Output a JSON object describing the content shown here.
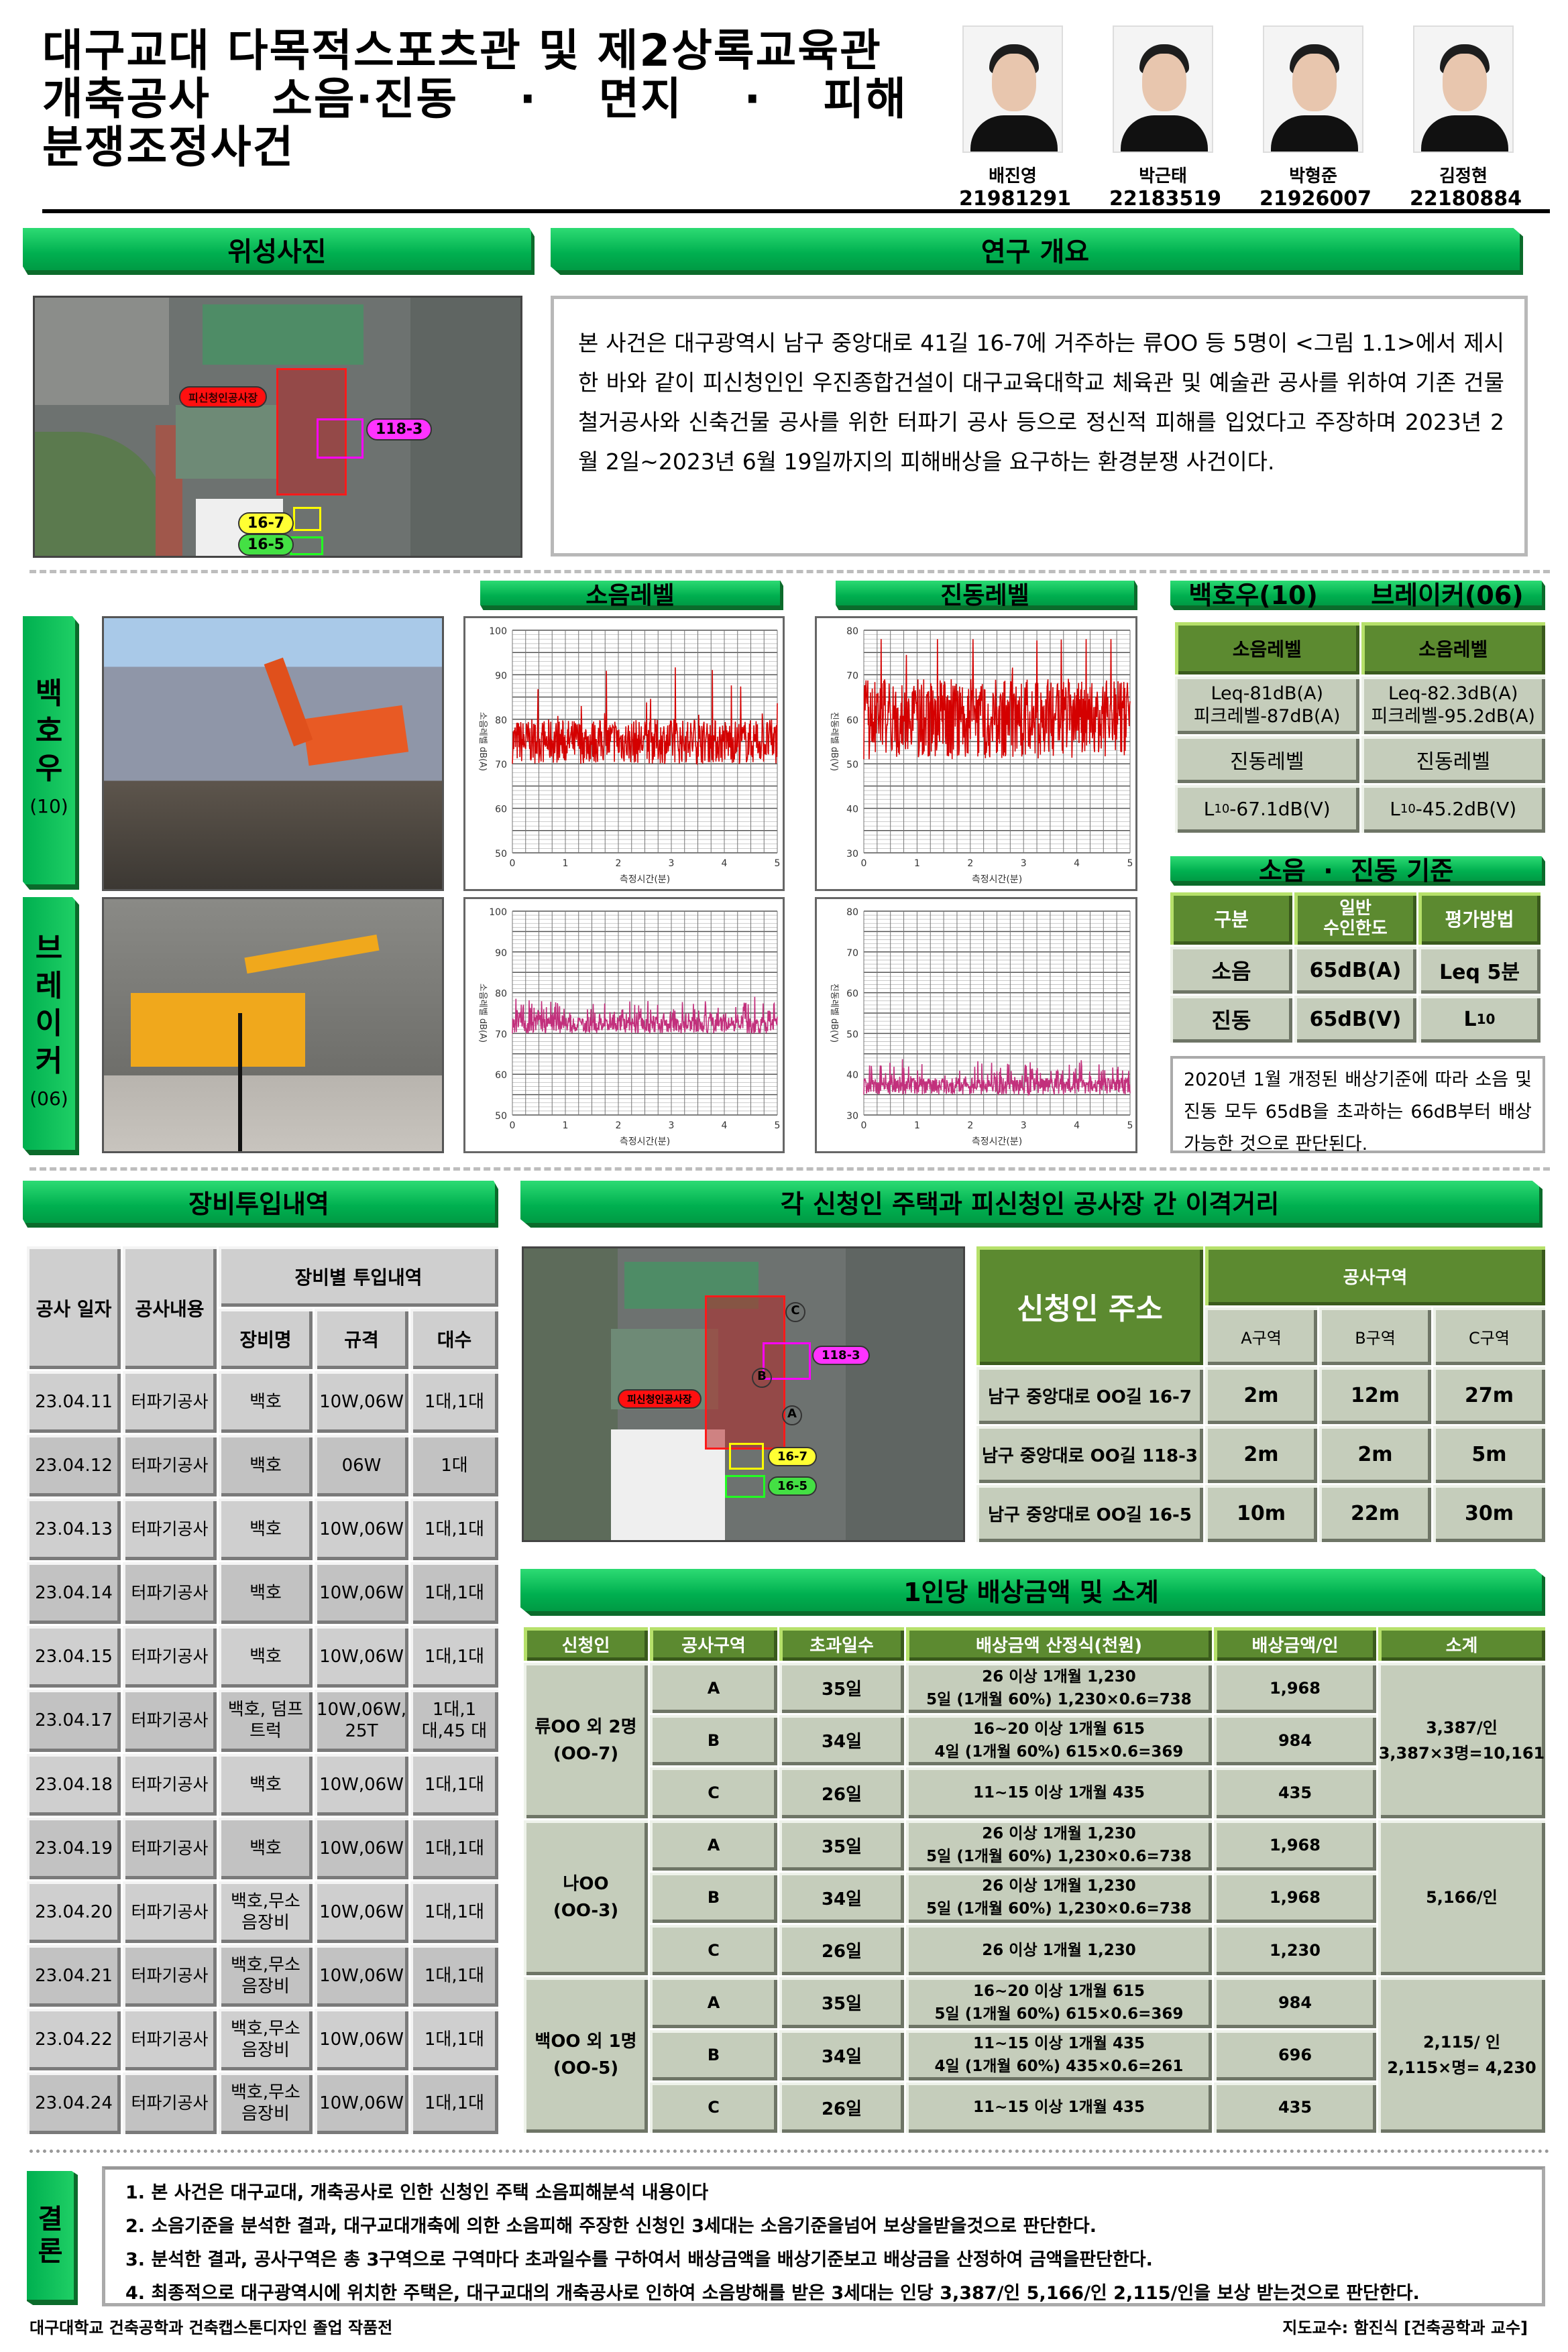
{
  "header": {
    "title_lines": [
      "대구교대 다목적스포츠관 및 제2상록교육관",
      "개축공사 소음·진동 · 면지 · 피해",
      "분쟁조정사건"
    ],
    "title_line2_parts": [
      "개축공사",
      "소음·진동",
      "·",
      "면지",
      "·",
      "피해"
    ],
    "members": [
      {
        "name": "배진영",
        "id": "21981291"
      },
      {
        "name": "박근태",
        "id": "22183519"
      },
      {
        "name": "박형준",
        "id": "21926007"
      },
      {
        "name": "김정현",
        "id": "22180884"
      }
    ]
  },
  "sections": {
    "satellite": "위성사진",
    "overview": "연구 개요",
    "noise_level": "소음레벨",
    "vibration_level": "진동레벨",
    "equipment_header": "백호우(10)      브레이커(06)",
    "standard": "소음  ·  진동 기준",
    "equipment_log": "장비투입내역",
    "distance": "각 신청인 주택과 피신청인 공사장 간 이격거리",
    "compensation": "1인당 배상금액 및 소계",
    "conclusion": "결론"
  },
  "satellite_map": {
    "site_label": "피신청인공사장",
    "labels": [
      "118-3",
      "16-7",
      "16-5"
    ],
    "zones": [
      "A",
      "B",
      "C"
    ]
  },
  "overview_text": "본 사건은 대구광역시 남구 중앙대로 41길 16-7에 거주하는 류OO 등 5명이 <그림 1.1>에서 제시한 바와 같이 피신청인인 우진종합건설이 대구교육대학교 체육관 및 예술관 공사를 위하여 기존 건물 철거공사와 신축건물 공사를 위한 터파기 공사 등으로 정신적 피해를 입었다고 주장하며 2023년 2월 2일~2023년 6월 19일까지의 피해배상을 요구하는 환경분쟁 사건이다.",
  "equipment_labels": [
    {
      "title": "백호우",
      "sub": "(10)"
    },
    {
      "title": "브레이커",
      "sub": "(06)"
    }
  ],
  "charts": {
    "noise": {
      "ylabel": "소음레벨 dB(A)",
      "xlabel": "측정시간(분)",
      "yticks": [
        "50",
        "60",
        "70",
        "80",
        "90",
        "100"
      ],
      "xticks": [
        "0",
        "1",
        "2",
        "3",
        "4",
        "5"
      ],
      "ylim": [
        50,
        100
      ],
      "xlim": [
        0,
        5
      ]
    },
    "vibration": {
      "ylabel": "진동레벨 dB(V)",
      "xlabel": "측정시간(분)",
      "yticks": [
        "30",
        "40",
        "50",
        "60",
        "70",
        "80"
      ],
      "xticks": [
        "0",
        "1",
        "2",
        "3",
        "4",
        "5"
      ],
      "ylim": [
        30,
        80
      ],
      "xlim": [
        0,
        5
      ]
    },
    "colors": {
      "backhoe": "#d40000",
      "breaker": "#c2307c"
    }
  },
  "measurements": {
    "col_headers": [
      "소음레벨",
      "소음레벨"
    ],
    "noise_values": [
      [
        "Leq-81dB(A)",
        "피크레벨-87dB(A)"
      ],
      [
        "Leq-82.3dB(A)",
        "피크레벨-95.2dB(A)"
      ]
    ],
    "vib_headers": [
      "진동레벨",
      "진동레벨"
    ],
    "vib_values": [
      "-67.1dB(V)",
      "-45.2dB(V)"
    ],
    "vib_symbol": "L",
    "vib_sub": "10"
  },
  "standards": {
    "headers": [
      "구분",
      "일반\n수인한도",
      "평가방법"
    ],
    "rows": [
      {
        "type": "소음",
        "limit": "65dB(A)",
        "method": "Leq 5분"
      },
      {
        "type": "진동",
        "limit": "65dB(V)",
        "method": "L",
        "method_sub": "10"
      }
    ],
    "note": "2020년 1월 개정된 배상기준에 따라 소음 및 진동 모두 65dB을 초과하는 66dB부터 배상가능한 것으로 판단된다."
  },
  "equipment_log": {
    "headers": {
      "date": "공사 일자",
      "work": "공사내용",
      "group": "장비별 투입내역",
      "name": "장비명",
      "spec": "규격",
      "count": "대수"
    },
    "rows": [
      {
        "date": "23.04.11",
        "work": "터파기공사",
        "name": "백호",
        "spec": "10W,06W",
        "count": "1대,1대"
      },
      {
        "date": "23.04.12",
        "work": "터파기공사",
        "name": "백호",
        "spec": "06W",
        "count": "1대"
      },
      {
        "date": "23.04.13",
        "work": "터파기공사",
        "name": "백호",
        "spec": "10W,06W",
        "count": "1대,1대"
      },
      {
        "date": "23.04.14",
        "work": "터파기공사",
        "name": "백호",
        "spec": "10W,06W",
        "count": "1대,1대"
      },
      {
        "date": "23.04.15",
        "work": "터파기공사",
        "name": "백호",
        "spec": "10W,06W",
        "count": "1대,1대"
      },
      {
        "date": "23.04.17",
        "work": "터파기공사",
        "name": "백호, 덤프트럭",
        "spec": "10W,06W, 25T",
        "count": "1대,1대,45 대"
      },
      {
        "date": "23.04.18",
        "work": "터파기공사",
        "name": "백호",
        "spec": "10W,06W",
        "count": "1대,1대"
      },
      {
        "date": "23.04.19",
        "work": "터파기공사",
        "name": "백호",
        "spec": "10W,06W",
        "count": "1대,1대"
      },
      {
        "date": "23.04.20",
        "work": "터파기공사",
        "name": "백호,무소 음장비",
        "spec": "10W,06W",
        "count": "1대,1대"
      },
      {
        "date": "23.04.21",
        "work": "터파기공사",
        "name": "백호,무소 음장비",
        "spec": "10W,06W",
        "count": "1대,1대"
      },
      {
        "date": "23.04.22",
        "work": "터파기공사",
        "name": "백호,무소 음장비",
        "spec": "10W,06W",
        "count": "1대,1대"
      },
      {
        "date": "23.04.24",
        "work": "터파기공사",
        "name": "백호,무소 음장비",
        "spec": "10W,06W",
        "count": "1대,1대"
      }
    ]
  },
  "distance_table": {
    "address_header": "신청인 주소",
    "zone_header": "공사구역",
    "zones": [
      "A구역",
      "B구역",
      "C구역"
    ],
    "rows": [
      {
        "address": "남구 중앙대로 OO길 16-7",
        "values": [
          "2m",
          "12m",
          "27m"
        ]
      },
      {
        "address": "남구 중앙대로 OO길 118-3",
        "values": [
          "2m",
          "2m",
          "5m"
        ]
      },
      {
        "address": "남구 중앙대로 OO길 16-5",
        "values": [
          "10m",
          "22m",
          "30m"
        ]
      }
    ]
  },
  "compensation": {
    "headers": [
      "신청인",
      "공사구역",
      "초과일수",
      "배상금액 산정식(천원)",
      "배상금액/인",
      "소계"
    ],
    "groups": [
      {
        "applicant": "류OO 외 2명",
        "address": "(OO-7)",
        "subtotal": [
          "3,387/인",
          "3,387×3명=10,161"
        ],
        "rows": [
          {
            "zone": "A",
            "days": "35일",
            "formula": [
              "26 이상 1개월 1,230",
              "5일 (1개월 60%) 1,230×0.6=738"
            ],
            "amount": "1,968"
          },
          {
            "zone": "B",
            "days": "34일",
            "formula": [
              "16~20 이상 1개월 615",
              "4일 (1개월 60%) 615×0.6=369"
            ],
            "amount": "984"
          },
          {
            "zone": "C",
            "days": "26일",
            "formula": [
              "11~15 이상 1개월 435"
            ],
            "amount": "435"
          }
        ]
      },
      {
        "applicant": "나OO",
        "address": "(OO-3)",
        "subtotal": [
          "5,166/인"
        ],
        "rows": [
          {
            "zone": "A",
            "days": "35일",
            "formula": [
              "26 이상 1개월 1,230",
              "5일 (1개월 60%) 1,230×0.6=738"
            ],
            "amount": "1,968"
          },
          {
            "zone": "B",
            "days": "34일",
            "formula": [
              "26 이상 1개월 1,230",
              "5일 (1개월 60%) 1,230×0.6=738"
            ],
            "amount": "1,968"
          },
          {
            "zone": "C",
            "days": "26일",
            "formula": [
              "26 이상 1개월 1,230"
            ],
            "amount": "1,230"
          }
        ]
      },
      {
        "applicant": "백OO 외 1명",
        "address": "(OO-5)",
        "subtotal": [
          "2,115/ 인",
          "2,115×명= 4,230"
        ],
        "rows": [
          {
            "zone": "A",
            "days": "35일",
            "formula": [
              "16~20 이상 1개월 615",
              "5일 (1개월 60%) 615×0.6=369"
            ],
            "amount": "984"
          },
          {
            "zone": "B",
            "days": "34일",
            "formula": [
              "11~15 이상 1개월 435",
              "4일 (1개월 60%) 435×0.6=261"
            ],
            "amount": "696"
          },
          {
            "zone": "C",
            "days": "26일",
            "formula": [
              "11~15 이상 1개월 435"
            ],
            "amount": "435"
          }
        ]
      }
    ]
  },
  "conclusion": [
    "1. 본 사건은 대구교대, 개축공사로 인한 신청인 주택 소음피해분석 내용이다",
    "2. 소음기준을 분석한 결과, 대구교대개축에 의한 소음피해 주장한 신청인 3세대는 소음기준을넘어 보상을받을것으로 판단한다.",
    "3. 분석한 결과, 공사구역은 총 3구역으로 구역마다 초과일수를 구하여서 배상금액을 배상기준보고 배상금을 산정하여 금액을판단한다.",
    "4. 최종적으로 대구광역시에 위치한 주택은, 대구교대의 개축공사로 인하여 소음방해를 받은 3세대는 인당 3,387/인 5,166/인 2,115/인을 보상 받는것으로 판단한다."
  ],
  "footer": {
    "left": "대구대학교 건축공학과 건축캡스톤디자인 졸업 작품전",
    "right": "지도교수: 함진식 [건축공학과 교수]"
  }
}
